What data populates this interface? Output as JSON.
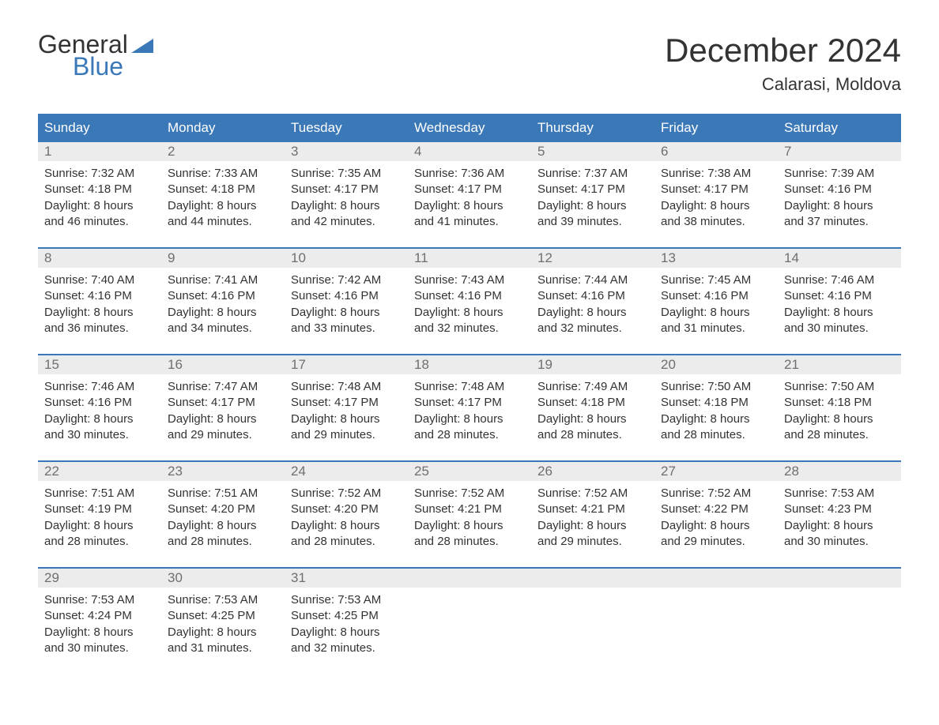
{
  "brand": {
    "word1": "General",
    "word2": "Blue",
    "text_color": "#333333",
    "accent_color": "#3a78b8"
  },
  "title": "December 2024",
  "location": "Calarasi, Moldova",
  "colors": {
    "header_bg": "#3a78b8",
    "header_text": "#ffffff",
    "row_border": "#3a78b8",
    "daynum_bg": "#ececec",
    "daynum_text": "#6f6f6f",
    "body_text": "#333333",
    "page_bg": "#ffffff"
  },
  "fonts": {
    "title_size_pt": 32,
    "location_size_pt": 17,
    "weekday_size_pt": 13,
    "daynum_size_pt": 13,
    "body_size_pt": 11
  },
  "weekdays": [
    "Sunday",
    "Monday",
    "Tuesday",
    "Wednesday",
    "Thursday",
    "Friday",
    "Saturday"
  ],
  "weeks": [
    [
      {
        "n": "1",
        "sunrise": "Sunrise: 7:32 AM",
        "sunset": "Sunset: 4:18 PM",
        "d1": "Daylight: 8 hours",
        "d2": "and 46 minutes."
      },
      {
        "n": "2",
        "sunrise": "Sunrise: 7:33 AM",
        "sunset": "Sunset: 4:18 PM",
        "d1": "Daylight: 8 hours",
        "d2": "and 44 minutes."
      },
      {
        "n": "3",
        "sunrise": "Sunrise: 7:35 AM",
        "sunset": "Sunset: 4:17 PM",
        "d1": "Daylight: 8 hours",
        "d2": "and 42 minutes."
      },
      {
        "n": "4",
        "sunrise": "Sunrise: 7:36 AM",
        "sunset": "Sunset: 4:17 PM",
        "d1": "Daylight: 8 hours",
        "d2": "and 41 minutes."
      },
      {
        "n": "5",
        "sunrise": "Sunrise: 7:37 AM",
        "sunset": "Sunset: 4:17 PM",
        "d1": "Daylight: 8 hours",
        "d2": "and 39 minutes."
      },
      {
        "n": "6",
        "sunrise": "Sunrise: 7:38 AM",
        "sunset": "Sunset: 4:17 PM",
        "d1": "Daylight: 8 hours",
        "d2": "and 38 minutes."
      },
      {
        "n": "7",
        "sunrise": "Sunrise: 7:39 AM",
        "sunset": "Sunset: 4:16 PM",
        "d1": "Daylight: 8 hours",
        "d2": "and 37 minutes."
      }
    ],
    [
      {
        "n": "8",
        "sunrise": "Sunrise: 7:40 AM",
        "sunset": "Sunset: 4:16 PM",
        "d1": "Daylight: 8 hours",
        "d2": "and 36 minutes."
      },
      {
        "n": "9",
        "sunrise": "Sunrise: 7:41 AM",
        "sunset": "Sunset: 4:16 PM",
        "d1": "Daylight: 8 hours",
        "d2": "and 34 minutes."
      },
      {
        "n": "10",
        "sunrise": "Sunrise: 7:42 AM",
        "sunset": "Sunset: 4:16 PM",
        "d1": "Daylight: 8 hours",
        "d2": "and 33 minutes."
      },
      {
        "n": "11",
        "sunrise": "Sunrise: 7:43 AM",
        "sunset": "Sunset: 4:16 PM",
        "d1": "Daylight: 8 hours",
        "d2": "and 32 minutes."
      },
      {
        "n": "12",
        "sunrise": "Sunrise: 7:44 AM",
        "sunset": "Sunset: 4:16 PM",
        "d1": "Daylight: 8 hours",
        "d2": "and 32 minutes."
      },
      {
        "n": "13",
        "sunrise": "Sunrise: 7:45 AM",
        "sunset": "Sunset: 4:16 PM",
        "d1": "Daylight: 8 hours",
        "d2": "and 31 minutes."
      },
      {
        "n": "14",
        "sunrise": "Sunrise: 7:46 AM",
        "sunset": "Sunset: 4:16 PM",
        "d1": "Daylight: 8 hours",
        "d2": "and 30 minutes."
      }
    ],
    [
      {
        "n": "15",
        "sunrise": "Sunrise: 7:46 AM",
        "sunset": "Sunset: 4:16 PM",
        "d1": "Daylight: 8 hours",
        "d2": "and 30 minutes."
      },
      {
        "n": "16",
        "sunrise": "Sunrise: 7:47 AM",
        "sunset": "Sunset: 4:17 PM",
        "d1": "Daylight: 8 hours",
        "d2": "and 29 minutes."
      },
      {
        "n": "17",
        "sunrise": "Sunrise: 7:48 AM",
        "sunset": "Sunset: 4:17 PM",
        "d1": "Daylight: 8 hours",
        "d2": "and 29 minutes."
      },
      {
        "n": "18",
        "sunrise": "Sunrise: 7:48 AM",
        "sunset": "Sunset: 4:17 PM",
        "d1": "Daylight: 8 hours",
        "d2": "and 28 minutes."
      },
      {
        "n": "19",
        "sunrise": "Sunrise: 7:49 AM",
        "sunset": "Sunset: 4:18 PM",
        "d1": "Daylight: 8 hours",
        "d2": "and 28 minutes."
      },
      {
        "n": "20",
        "sunrise": "Sunrise: 7:50 AM",
        "sunset": "Sunset: 4:18 PM",
        "d1": "Daylight: 8 hours",
        "d2": "and 28 minutes."
      },
      {
        "n": "21",
        "sunrise": "Sunrise: 7:50 AM",
        "sunset": "Sunset: 4:18 PM",
        "d1": "Daylight: 8 hours",
        "d2": "and 28 minutes."
      }
    ],
    [
      {
        "n": "22",
        "sunrise": "Sunrise: 7:51 AM",
        "sunset": "Sunset: 4:19 PM",
        "d1": "Daylight: 8 hours",
        "d2": "and 28 minutes."
      },
      {
        "n": "23",
        "sunrise": "Sunrise: 7:51 AM",
        "sunset": "Sunset: 4:20 PM",
        "d1": "Daylight: 8 hours",
        "d2": "and 28 minutes."
      },
      {
        "n": "24",
        "sunrise": "Sunrise: 7:52 AM",
        "sunset": "Sunset: 4:20 PM",
        "d1": "Daylight: 8 hours",
        "d2": "and 28 minutes."
      },
      {
        "n": "25",
        "sunrise": "Sunrise: 7:52 AM",
        "sunset": "Sunset: 4:21 PM",
        "d1": "Daylight: 8 hours",
        "d2": "and 28 minutes."
      },
      {
        "n": "26",
        "sunrise": "Sunrise: 7:52 AM",
        "sunset": "Sunset: 4:21 PM",
        "d1": "Daylight: 8 hours",
        "d2": "and 29 minutes."
      },
      {
        "n": "27",
        "sunrise": "Sunrise: 7:52 AM",
        "sunset": "Sunset: 4:22 PM",
        "d1": "Daylight: 8 hours",
        "d2": "and 29 minutes."
      },
      {
        "n": "28",
        "sunrise": "Sunrise: 7:53 AM",
        "sunset": "Sunset: 4:23 PM",
        "d1": "Daylight: 8 hours",
        "d2": "and 30 minutes."
      }
    ],
    [
      {
        "n": "29",
        "sunrise": "Sunrise: 7:53 AM",
        "sunset": "Sunset: 4:24 PM",
        "d1": "Daylight: 8 hours",
        "d2": "and 30 minutes."
      },
      {
        "n": "30",
        "sunrise": "Sunrise: 7:53 AM",
        "sunset": "Sunset: 4:25 PM",
        "d1": "Daylight: 8 hours",
        "d2": "and 31 minutes."
      },
      {
        "n": "31",
        "sunrise": "Sunrise: 7:53 AM",
        "sunset": "Sunset: 4:25 PM",
        "d1": "Daylight: 8 hours",
        "d2": "and 32 minutes."
      },
      {
        "empty": true
      },
      {
        "empty": true
      },
      {
        "empty": true
      },
      {
        "empty": true
      }
    ]
  ]
}
